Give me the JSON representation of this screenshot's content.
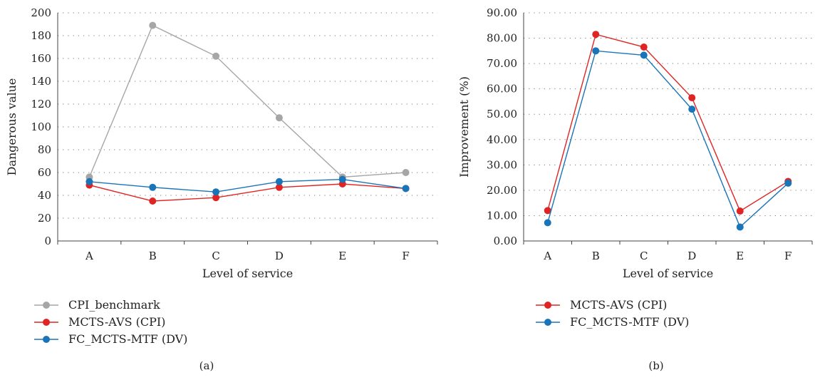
{
  "chart_data": [
    {
      "type": "line",
      "panel_label": "(a)",
      "xlabel": "Level of service",
      "ylabel": "Dangerous value",
      "categories": [
        "A",
        "B",
        "C",
        "D",
        "E",
        "F"
      ],
      "ylim": [
        0,
        200
      ],
      "yticks": [
        0,
        20,
        40,
        60,
        80,
        100,
        120,
        140,
        160,
        180,
        200
      ],
      "ytick_labels": [
        "0",
        "20",
        "40",
        "60",
        "80",
        "100",
        "120",
        "140",
        "160",
        "180",
        "200"
      ],
      "grid": "dotted horizontal",
      "legend_position": "bottom",
      "series": [
        {
          "name": "CPI_benchmark",
          "color": "#a6a6a6",
          "values": [
            56,
            189,
            162,
            108,
            56,
            60
          ]
        },
        {
          "name": "MCTS-AVS (CPI)",
          "color": "#e02424",
          "values": [
            49,
            35,
            38,
            47,
            50,
            46
          ]
        },
        {
          "name": "FC_MCTS-MTF (DV)",
          "color": "#1a74b8",
          "values": [
            52,
            47,
            43,
            52,
            54,
            46
          ]
        }
      ]
    },
    {
      "type": "line",
      "panel_label": "(b)",
      "xlabel": "Level of service",
      "ylabel": "Improvement (%)",
      "categories": [
        "A",
        "B",
        "C",
        "D",
        "E",
        "F"
      ],
      "ylim": [
        0,
        90
      ],
      "yticks": [
        0,
        10,
        20,
        30,
        40,
        50,
        60,
        70,
        80,
        90
      ],
      "ytick_labels": [
        "0.00",
        "10.00",
        "20.00",
        "30.00",
        "40.00",
        "50.00",
        "60.00",
        "70.00",
        "80.00",
        "90.00"
      ],
      "grid": "dotted horizontal",
      "legend_position": "bottom",
      "series": [
        {
          "name": "MCTS-AVS (CPI)",
          "color": "#e02424",
          "values": [
            12.0,
            81.5,
            76.5,
            56.5,
            11.8,
            23.5
          ]
        },
        {
          "name": "FC_MCTS-MTF (DV)",
          "color": "#1a74b8",
          "values": [
            7.2,
            75.0,
            73.3,
            52.0,
            5.5,
            22.8
          ]
        }
      ]
    }
  ]
}
